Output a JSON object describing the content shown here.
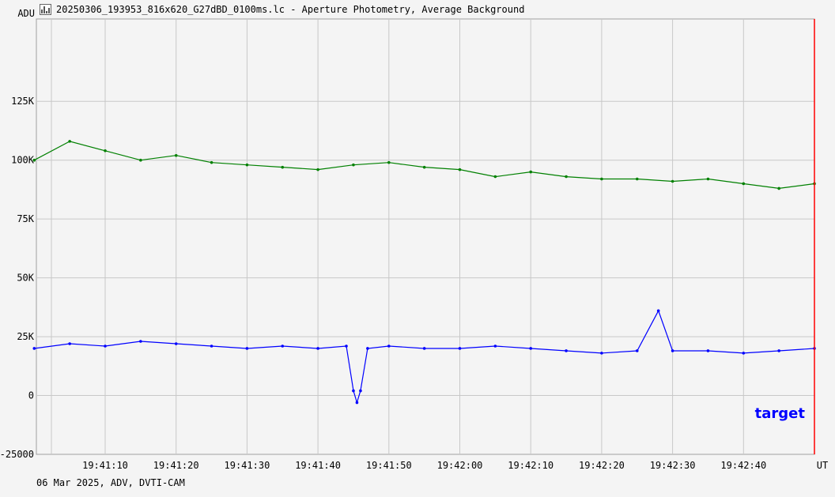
{
  "window": {
    "title": "20250306_193953_816x620_G27dBD_0100ms.lc - Aperture Photometry, Average Background",
    "icon": "lightcurve-app-icon"
  },
  "footer_text": "06 Mar 2025, ADV, DVTI-CAM",
  "colors": {
    "background": "#f4f4f4",
    "grid": "#c8c8c8",
    "target": "#0000ff",
    "background_series": "#008000",
    "marker_line": "#ff0000"
  },
  "chart_data": {
    "type": "line",
    "title": "",
    "xlabel": "UT",
    "ylabel": "ADU",
    "xlim": [
      "19:41:00.3",
      "19:42:50.0"
    ],
    "ylim": [
      -25000,
      160000
    ],
    "grid": true,
    "y_ticks": [
      {
        "value": -25000,
        "label": "-25000"
      },
      {
        "value": 0,
        "label": "0"
      },
      {
        "value": 25000,
        "label": "25K"
      },
      {
        "value": 50000,
        "label": "50K"
      },
      {
        "value": 75000,
        "label": "75K"
      },
      {
        "value": 100000,
        "label": "100K"
      },
      {
        "value": 125000,
        "label": "125K"
      }
    ],
    "x_ticks": [
      {
        "value": "19:41:10",
        "label": "19:41:10"
      },
      {
        "value": "19:41:20",
        "label": "19:41:20"
      },
      {
        "value": "19:41:30",
        "label": "19:41:30"
      },
      {
        "value": "19:41:40",
        "label": "19:41:40"
      },
      {
        "value": "19:41:50",
        "label": "19:41:50"
      },
      {
        "value": "19:42:00",
        "label": "19:42:00"
      },
      {
        "value": "19:42:10",
        "label": "19:42:10"
      },
      {
        "value": "19:42:20",
        "label": "19:42:20"
      },
      {
        "value": "19:42:30",
        "label": "19:42:30"
      },
      {
        "value": "19:42:40",
        "label": "19:42:40"
      }
    ],
    "series": [
      {
        "name": "target",
        "color": "#0000ff",
        "x": [
          "19:41:00",
          "19:41:05",
          "19:41:10",
          "19:41:15",
          "19:41:20",
          "19:41:25",
          "19:41:30",
          "19:41:35",
          "19:41:40",
          "19:41:44",
          "19:41:45",
          "19:41:45.5",
          "19:41:46",
          "19:41:47",
          "19:41:50",
          "19:41:55",
          "19:42:00",
          "19:42:05",
          "19:42:10",
          "19:42:15",
          "19:42:20",
          "19:42:25",
          "19:42:28",
          "19:42:30",
          "19:42:35",
          "19:42:40",
          "19:42:45",
          "19:42:50"
        ],
        "values": [
          20000,
          22000,
          21000,
          23000,
          22000,
          21000,
          20000,
          21000,
          20000,
          21000,
          2000,
          -3000,
          2000,
          20000,
          21000,
          20000,
          20000,
          21000,
          20000,
          19000,
          18000,
          19000,
          36000,
          19000,
          19000,
          18000,
          19000,
          20000
        ]
      },
      {
        "name": "",
        "color": "#008000",
        "x": [
          "19:41:00",
          "19:41:05",
          "19:41:10",
          "19:41:15",
          "19:41:20",
          "19:41:25",
          "19:41:30",
          "19:41:35",
          "19:41:40",
          "19:41:45",
          "19:41:50",
          "19:41:55",
          "19:42:00",
          "19:42:05",
          "19:42:10",
          "19:42:15",
          "19:42:20",
          "19:42:25",
          "19:42:30",
          "19:42:35",
          "19:42:40",
          "19:42:45",
          "19:42:50"
        ],
        "values": [
          100000,
          108000,
          104000,
          100000,
          102000,
          99000,
          98000,
          97000,
          96000,
          98000,
          99000,
          97000,
          96000,
          93000,
          95000,
          93000,
          92000,
          92000,
          91000,
          92000,
          90000,
          88000,
          90000
        ]
      }
    ],
    "legend": [
      {
        "label": "target",
        "color": "#0000ff",
        "placement": "bottom-right"
      }
    ],
    "marker_time": "19:42:50"
  }
}
